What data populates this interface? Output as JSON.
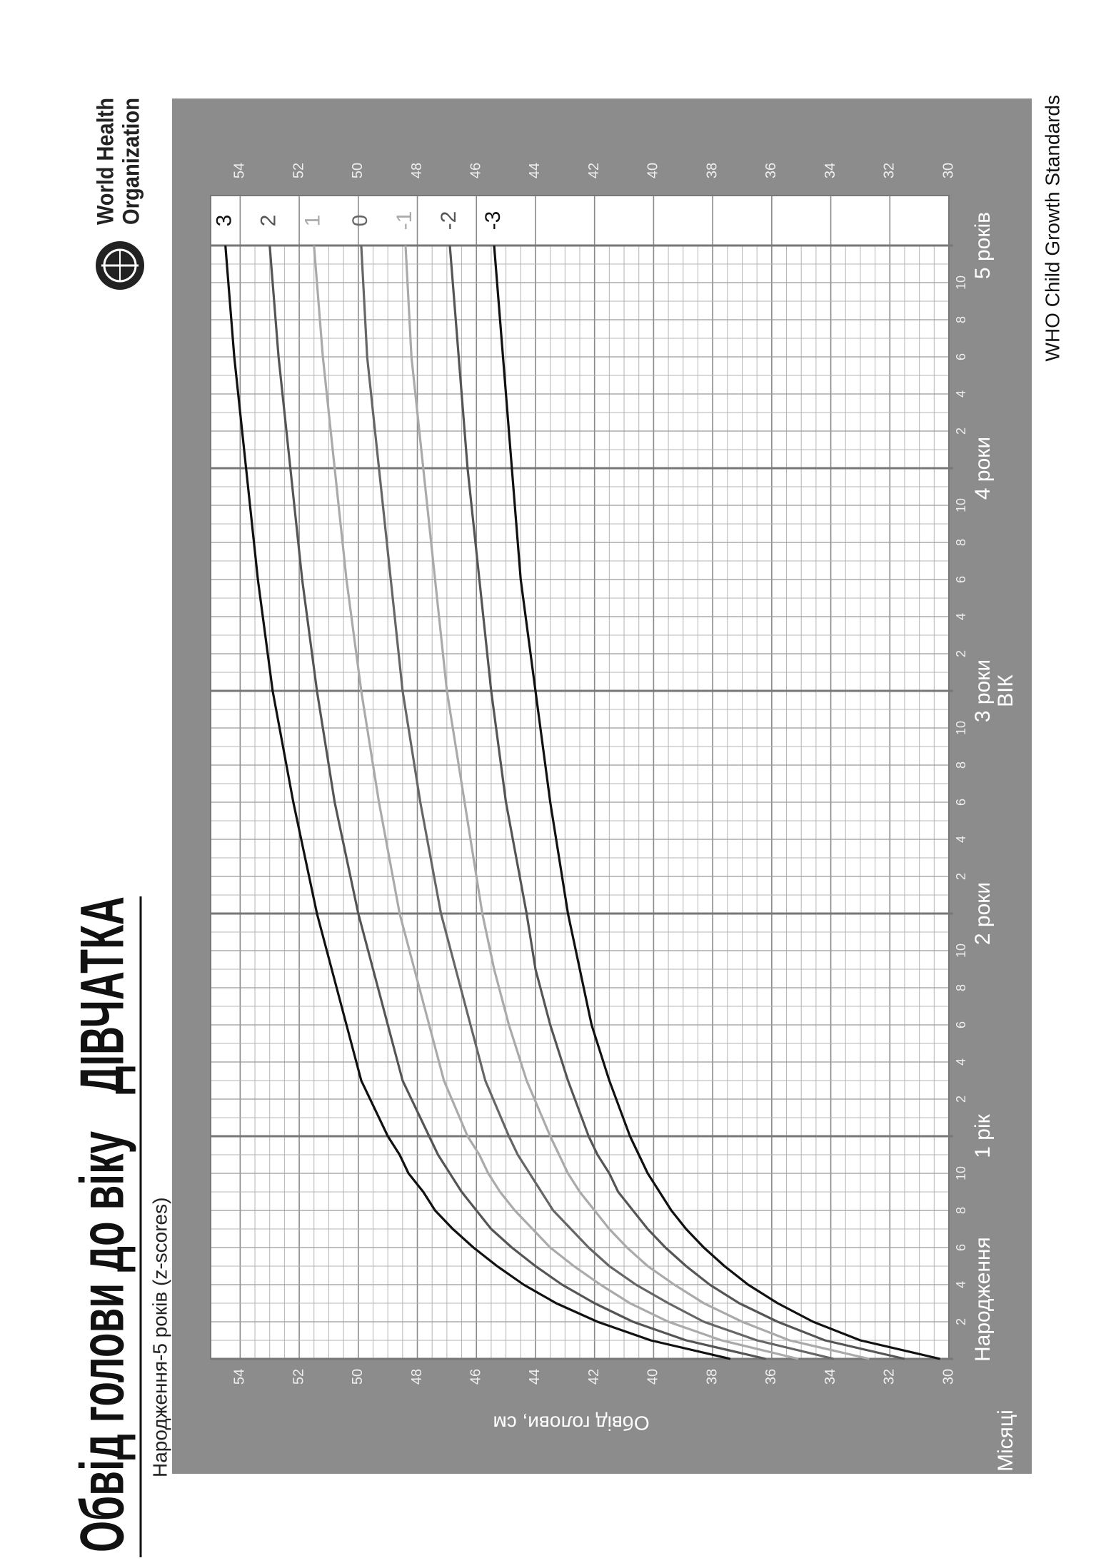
{
  "chart_data": {
    "type": "line",
    "title": "Обвід голови до віку",
    "title_sex": "ДІВЧАТКА",
    "subtitle": "Народження-5 років (z-scores)",
    "ylabel": "Обвід голови, см",
    "xlabel": "ВІК",
    "x_row_label": "Місяці",
    "logo": {
      "line1": "World Health",
      "line2": "Organization"
    },
    "footer": "WHO Child Growth Standards",
    "grid": true,
    "xlim": [
      0,
      60
    ],
    "ylim": [
      30,
      55
    ],
    "yticks": [
      30,
      32,
      34,
      36,
      38,
      40,
      42,
      44,
      46,
      48,
      50,
      52,
      54
    ],
    "xticks": [
      {
        "value": 2,
        "label": "2"
      },
      {
        "value": 4,
        "label": "4"
      },
      {
        "value": 6,
        "label": "6"
      },
      {
        "value": 8,
        "label": "8"
      },
      {
        "value": 10,
        "label": "10"
      },
      {
        "value": 14,
        "label": "2"
      },
      {
        "value": 16,
        "label": "4"
      },
      {
        "value": 18,
        "label": "6"
      },
      {
        "value": 20,
        "label": "8"
      },
      {
        "value": 22,
        "label": "10"
      },
      {
        "value": 26,
        "label": "2"
      },
      {
        "value": 28,
        "label": "4"
      },
      {
        "value": 30,
        "label": "6"
      },
      {
        "value": 32,
        "label": "8"
      },
      {
        "value": 34,
        "label": "10"
      },
      {
        "value": 38,
        "label": "2"
      },
      {
        "value": 40,
        "label": "4"
      },
      {
        "value": 42,
        "label": "6"
      },
      {
        "value": 44,
        "label": "8"
      },
      {
        "value": 46,
        "label": "10"
      },
      {
        "value": 50,
        "label": "2"
      },
      {
        "value": 52,
        "label": "4"
      },
      {
        "value": 54,
        "label": "6"
      },
      {
        "value": 56,
        "label": "8"
      },
      {
        "value": 58,
        "label": "10"
      }
    ],
    "x_major_ticks": [
      {
        "value": 0,
        "label": "Народження"
      },
      {
        "value": 12,
        "label": "1 рік"
      },
      {
        "value": 24,
        "label": "2 роки"
      },
      {
        "value": 36,
        "label": "3 роки"
      },
      {
        "value": 48,
        "label": "4 роки"
      },
      {
        "value": 60,
        "label": "5 років"
      }
    ],
    "x": [
      0,
      1,
      2,
      3,
      4,
      5,
      6,
      7,
      8,
      9,
      10,
      11,
      12,
      15,
      18,
      21,
      24,
      30,
      36,
      42,
      48,
      54,
      60
    ],
    "series": [
      {
        "name": "3",
        "color": "#111111",
        "values": [
          37.4,
          40.1,
          41.9,
          43.3,
          44.4,
          45.3,
          46.1,
          46.8,
          47.4,
          47.8,
          48.3,
          48.6,
          49.0,
          49.9,
          50.4,
          50.9,
          51.4,
          52.2,
          52.9,
          53.4,
          53.8,
          54.2,
          54.5
        ]
      },
      {
        "name": "2",
        "color": "#555555",
        "values": [
          36.2,
          38.9,
          40.7,
          42.0,
          43.1,
          44.0,
          44.8,
          45.5,
          46.0,
          46.5,
          46.9,
          47.3,
          47.6,
          48.5,
          49.0,
          49.5,
          50.0,
          50.8,
          51.4,
          51.9,
          52.3,
          52.7,
          53.0
        ]
      },
      {
        "name": "1",
        "color": "#aaaaaa",
        "values": [
          35.1,
          37.7,
          39.5,
          40.8,
          41.8,
          42.7,
          43.5,
          44.1,
          44.7,
          45.2,
          45.6,
          45.9,
          46.3,
          47.1,
          47.6,
          48.1,
          48.6,
          49.3,
          49.9,
          50.4,
          50.8,
          51.2,
          51.5
        ]
      },
      {
        "name": "0",
        "color": "#666666",
        "values": [
          33.9,
          36.5,
          38.3,
          39.5,
          40.6,
          41.5,
          42.2,
          42.8,
          43.4,
          43.8,
          44.2,
          44.6,
          44.9,
          45.7,
          46.2,
          46.7,
          47.2,
          47.9,
          48.5,
          48.9,
          49.3,
          49.7,
          49.9
        ]
      },
      {
        "name": "-1",
        "color": "#aaaaaa",
        "values": [
          32.7,
          35.4,
          37.0,
          38.3,
          39.3,
          40.2,
          40.9,
          41.5,
          42.0,
          42.5,
          42.9,
          43.2,
          43.5,
          44.3,
          44.9,
          45.4,
          45.8,
          46.4,
          47.0,
          47.4,
          47.8,
          48.2,
          48.4
        ]
      },
      {
        "name": "-2",
        "color": "#555555",
        "values": [
          31.5,
          34.2,
          35.8,
          37.1,
          38.1,
          38.9,
          39.6,
          40.2,
          40.7,
          41.2,
          41.5,
          41.9,
          42.2,
          42.9,
          43.5,
          44.0,
          44.3,
          45.0,
          45.5,
          45.9,
          46.3,
          46.6,
          46.9
        ]
      },
      {
        "name": "-3",
        "color": "#111111",
        "values": [
          30.3,
          33.0,
          34.6,
          35.8,
          36.8,
          37.6,
          38.3,
          38.9,
          39.4,
          39.8,
          40.2,
          40.5,
          40.8,
          41.5,
          42.1,
          42.5,
          42.9,
          43.5,
          44.0,
          44.5,
          44.8,
          45.1,
          45.4
        ]
      }
    ]
  }
}
